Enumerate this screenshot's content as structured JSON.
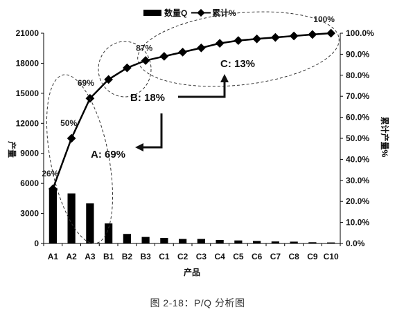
{
  "chart_data": {
    "type": "bar",
    "categories": [
      "A1",
      "A2",
      "A3",
      "B1",
      "B2",
      "B3",
      "C1",
      "C2",
      "C3",
      "C4",
      "C5",
      "C6",
      "C7",
      "C8",
      "C9",
      "C10"
    ],
    "series": [
      {
        "name": "数量Q",
        "type": "bar",
        "axis": "left",
        "values": [
          5500,
          5000,
          4000,
          2000,
          950,
          650,
          550,
          450,
          450,
          350,
          300,
          250,
          200,
          180,
          120,
          100
        ]
      },
      {
        "name": "累计%",
        "type": "line",
        "axis": "right",
        "values": [
          26,
          50,
          69,
          78,
          83.5,
          87,
          89,
          91,
          93,
          95.2,
          96.5,
          97.3,
          98,
          98.7,
          99.4,
          100
        ]
      }
    ],
    "xlabel": "产品",
    "ylabel": "产量",
    "y2label": "累计产量%",
    "ylim": [
      0,
      21000
    ],
    "y2lim": [
      0,
      100
    ],
    "yticks": [
      "0",
      "3000",
      "6000",
      "9000",
      "12000",
      "15000",
      "18000",
      "21000"
    ],
    "y2ticks": [
      "0.0%",
      "10.0%",
      "20.0%",
      "30.0%",
      "40.0%",
      "50.0%",
      "60.0%",
      "70.0%",
      "80.0%",
      "90.0%",
      "100.0%"
    ],
    "point_labels": [
      {
        "index": 0,
        "text": "26%"
      },
      {
        "index": 1,
        "text": "50%"
      },
      {
        "index": 2,
        "text": "69%"
      },
      {
        "index": 5,
        "text": "87%"
      },
      {
        "index": 15,
        "text": "100%"
      }
    ],
    "annotations": {
      "zone_a": "A: 69%",
      "zone_b": "B: 18%",
      "zone_c": "C: 13%"
    },
    "legend_position": "top-center",
    "grid": false
  },
  "caption": "图 2-18：P/Q 分析图"
}
